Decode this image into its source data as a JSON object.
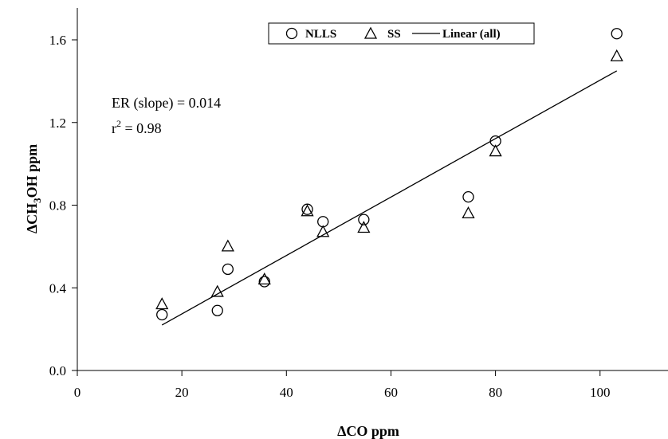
{
  "chart_data": {
    "type": "scatter",
    "x_label": {
      "prefix": "Δ",
      "main": "CO ppm"
    },
    "y_label": {
      "prefix": "Δ",
      "part1": "CH",
      "sub": "3",
      "part2": "OH ppm"
    },
    "xlim": [
      0,
      113
    ],
    "ylim": [
      0,
      1.6
    ],
    "x_ticks": [
      0,
      20,
      40,
      60,
      80,
      100
    ],
    "x_tick_labels": [
      "0",
      "20",
      "40",
      "60",
      "80",
      "100"
    ],
    "y_ticks": [
      0.0,
      0.4,
      0.8,
      1.2,
      1.6
    ],
    "y_tick_labels": [
      "0.0",
      "0.4",
      "0.8",
      "1.2",
      "1.6"
    ],
    "grid": false,
    "legend_position": "top-right",
    "legend": {
      "nlls": "NLLS",
      "ss": "SS",
      "linear": "Linear (all)"
    },
    "annotations": {
      "slope": "ER (slope) = 0.014",
      "r2_prefix": "r",
      "r2_sup": "2",
      "r2_suffix": " = 0.98"
    },
    "series": [
      {
        "name": "NLLS",
        "marker": "circle",
        "x": [
          16.2,
          26.8,
          28.8,
          35.8,
          44.0,
          47.0,
          54.8,
          74.8,
          80.0,
          103.2
        ],
        "y": [
          0.27,
          0.29,
          0.49,
          0.43,
          0.78,
          0.72,
          0.73,
          0.84,
          1.11,
          1.63
        ]
      },
      {
        "name": "SS",
        "marker": "triangle",
        "x": [
          16.2,
          26.8,
          28.8,
          35.8,
          44.0,
          47.0,
          54.8,
          74.8,
          80.0,
          103.2
        ],
        "y": [
          0.32,
          0.38,
          0.6,
          0.44,
          0.77,
          0.67,
          0.69,
          0.76,
          1.06,
          1.52
        ]
      },
      {
        "name": "Linear (all)",
        "type": "line",
        "x": [
          16.2,
          103.2
        ],
        "y": [
          0.22,
          1.45
        ]
      }
    ]
  }
}
